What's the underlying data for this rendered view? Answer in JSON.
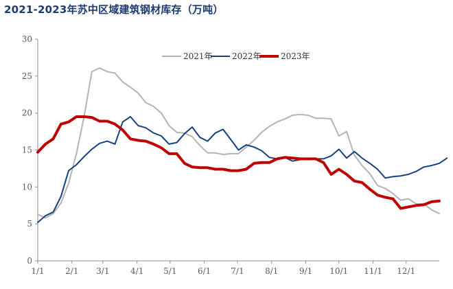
{
  "chart_data": {
    "type": "line",
    "title": "2021-2023年苏中区域建筑钢材库存（万吨）",
    "ylim": [
      0,
      30
    ],
    "yticks": [
      0,
      5,
      10,
      15,
      20,
      25,
      30
    ],
    "x_range": [
      0,
      52
    ],
    "xticks": [
      {
        "label": "1/1",
        "x": 0
      },
      {
        "label": "2/1",
        "x": 4.43
      },
      {
        "label": "3/1",
        "x": 8.43
      },
      {
        "label": "4/1",
        "x": 12.86
      },
      {
        "label": "5/1",
        "x": 17.14
      },
      {
        "label": "6/1",
        "x": 21.57
      },
      {
        "label": "7/1",
        "x": 25.86
      },
      {
        "label": "8/1",
        "x": 30.29
      },
      {
        "label": "9/1",
        "x": 34.71
      },
      {
        "label": "10/1",
        "x": 39
      },
      {
        "label": "11/1",
        "x": 43.43
      },
      {
        "label": "12/1",
        "x": 47.71
      }
    ],
    "grid": false,
    "legend_position": "top-center",
    "series": [
      {
        "name": "2021年",
        "color": "#b3b3b3",
        "values": [
          6.3,
          5.8,
          6.4,
          7.8,
          10.5,
          14.5,
          19.5,
          25.6,
          26.1,
          25.6,
          25.4,
          24.2,
          23.5,
          22.7,
          21.4,
          20.9,
          20.0,
          18.3,
          17.4,
          17.3,
          16.8,
          15.6,
          14.6,
          14.6,
          14.4,
          14.5,
          14.5,
          15.4,
          16.3,
          17.4,
          18.2,
          18.8,
          19.2,
          19.7,
          19.8,
          19.7,
          19.3,
          19.3,
          19.2,
          16.9,
          17.5,
          14.3,
          12.9,
          11.8,
          10.2,
          9.8,
          9.1,
          8.2,
          8.4,
          7.7,
          7.7,
          6.9,
          6.4
        ]
      },
      {
        "name": "2022年",
        "color": "#14407e",
        "values": [
          5.2,
          6.1,
          6.6,
          8.7,
          12.2,
          13.0,
          14.1,
          15.1,
          15.9,
          16.2,
          15.8,
          18.8,
          19.5,
          18.3,
          18.0,
          17.3,
          16.9,
          15.8,
          16.0,
          17.2,
          18.1,
          16.7,
          16.2,
          17.3,
          17.8,
          16.4,
          15.0,
          15.7,
          15.4,
          14.9,
          14.0,
          13.8,
          14.0,
          13.5,
          13.7,
          13.7,
          13.8,
          13.8,
          14.2,
          15.1,
          13.9,
          14.8,
          13.9,
          13.2,
          12.4,
          11.2,
          11.4,
          11.5,
          11.7,
          12.1,
          12.7,
          12.9,
          13.2,
          13.9
        ]
      },
      {
        "name": "2023年",
        "color": "#c00000",
        "values": [
          14.7,
          15.8,
          16.5,
          18.5,
          18.8,
          19.5,
          19.5,
          19.4,
          18.9,
          18.9,
          18.5,
          17.7,
          16.5,
          16.3,
          16.2,
          15.8,
          15.3,
          14.5,
          14.5,
          13.2,
          12.7,
          12.6,
          12.6,
          12.4,
          12.4,
          12.2,
          12.2,
          12.4,
          13.2,
          13.3,
          13.3,
          13.8,
          14.0,
          13.9,
          13.8,
          13.8,
          13.8,
          13.3,
          11.7,
          12.4,
          11.7,
          10.8,
          10.6,
          9.7,
          8.9,
          8.6,
          8.4,
          7.1,
          7.3,
          7.5,
          7.6,
          8.0,
          8.1
        ]
      }
    ]
  }
}
